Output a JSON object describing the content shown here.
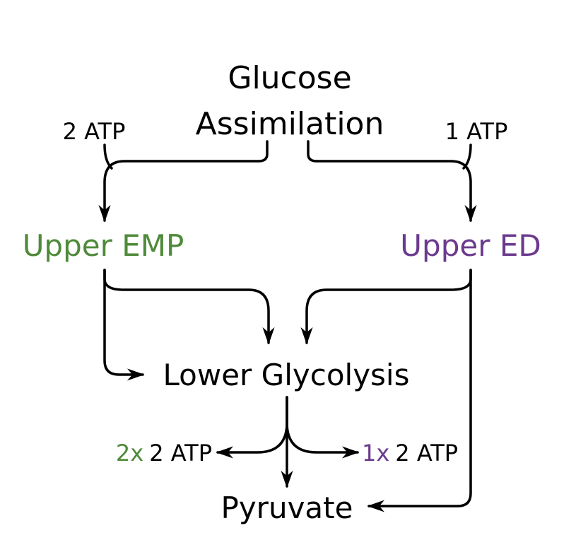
{
  "colors": {
    "emp": "#4f8a3a",
    "ed": "#6b3a8e",
    "text": "#000000"
  },
  "nodes": {
    "glucose_line1": "Glucose",
    "glucose_line2": "Assimilation",
    "upper_emp": "Upper EMP",
    "upper_ed": "Upper ED",
    "lower_glycolysis": "Lower Glycolysis",
    "pyruvate": "Pyruvate"
  },
  "labels": {
    "emp_cost": "2 ATP",
    "ed_cost": "1 ATP",
    "emp_yield_multiplier": "2x",
    "emp_yield_value": "2 ATP",
    "ed_yield_multiplier": "1x",
    "ed_yield_value": "2 ATP"
  }
}
